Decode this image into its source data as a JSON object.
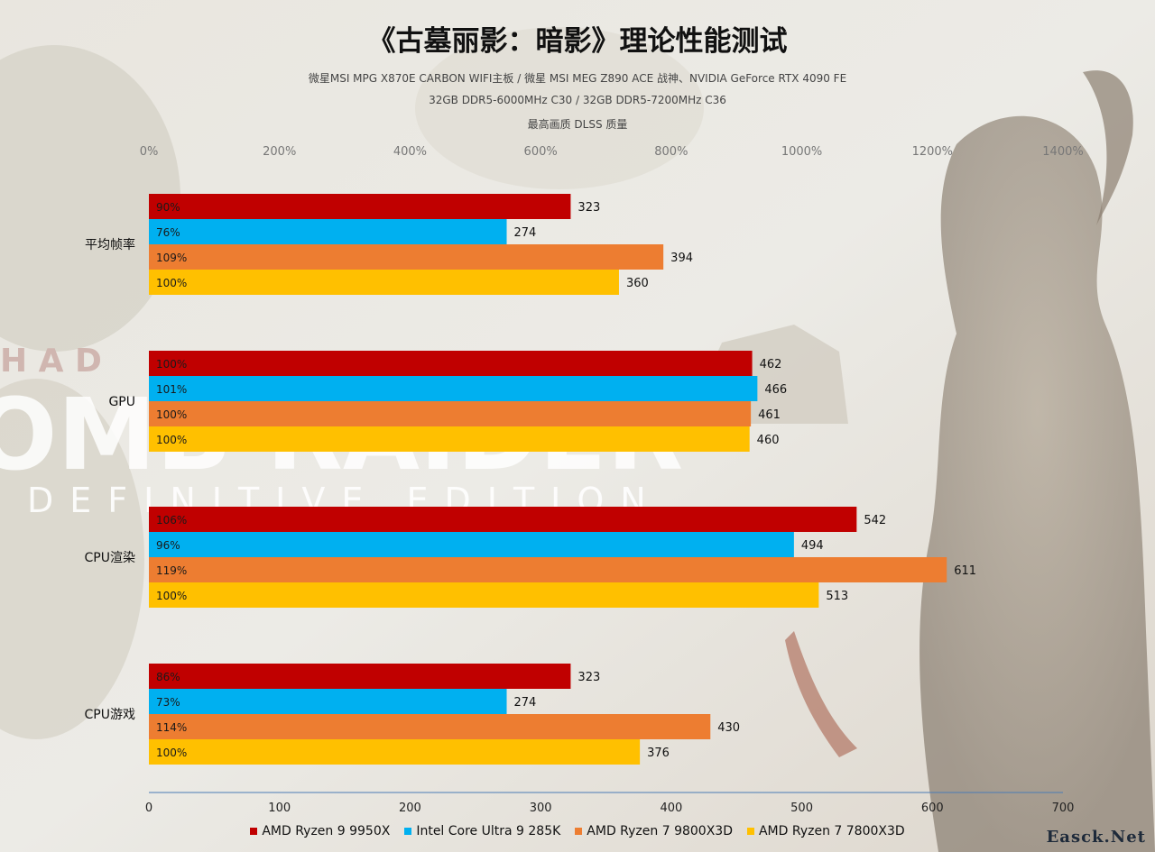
{
  "header": {
    "title": "《古墓丽影：暗影》理论性能测试",
    "subtitle_line1": "微星MSI MPG X870E CARBON WIFI主板 / 微星 MSI MEG Z890 ACE 战神、NVIDIA GeForce RTX 4090 FE",
    "subtitle_line2": "32GB DDR5-6000MHz  C30 / 32GB DDR5-7200MHz  C36",
    "subtitle_line3": "最高画质 DLSS 质量"
  },
  "background": {
    "logo_letters_top": "H A D",
    "logo_letters_mid": "OMB RAIDER",
    "logo_letters_bottom": "DEFINITIVE EDITION"
  },
  "watermark": "Easck.Net",
  "colors": {
    "AMD Ryzen 9 9950X": "#c00000",
    "Intel Core Ultra 9 285K": "#00b0f0",
    "AMD Ryzen 7 9800X3D": "#ed7d31",
    "AMD Ryzen 7 7800X3D": "#ffc000"
  },
  "chart_data": {
    "type": "bar",
    "orientation": "horizontal",
    "categories": [
      "平均帧率",
      "GPU",
      "CPU渲染",
      "CPU游戏"
    ],
    "series": [
      {
        "name": "AMD Ryzen 9 9950X",
        "values": [
          323,
          462,
          542,
          323
        ],
        "percent_labels": [
          "90%",
          "100%",
          "106%",
          "86%"
        ]
      },
      {
        "name": "Intel Core Ultra 9 285K",
        "values": [
          274,
          466,
          494,
          274
        ],
        "percent_labels": [
          "76%",
          "101%",
          "96%",
          "73%"
        ]
      },
      {
        "name": "AMD Ryzen 7 9800X3D",
        "values": [
          394,
          461,
          611,
          430
        ],
        "percent_labels": [
          "109%",
          "100%",
          "119%",
          "114%"
        ]
      },
      {
        "name": "AMD Ryzen 7 7800X3D",
        "values": [
          360,
          460,
          513,
          376
        ],
        "percent_labels": [
          "100%",
          "100%",
          "100%",
          "100%"
        ]
      }
    ],
    "x_axis_bottom": {
      "ticks": [
        "0",
        "100",
        "200",
        "300",
        "400",
        "500",
        "600",
        "700"
      ],
      "range": [
        0,
        700
      ]
    },
    "x_axis_top": {
      "ticks": [
        "0%",
        "200%",
        "400%",
        "600%",
        "800%",
        "1000%",
        "1200%",
        "1400%"
      ],
      "range": [
        0,
        1400
      ]
    },
    "legend_position": "bottom",
    "grid": false
  }
}
